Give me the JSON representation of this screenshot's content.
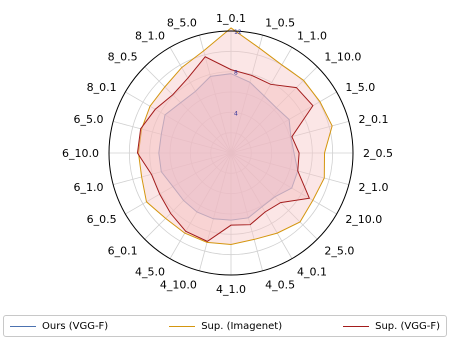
{
  "chart_data": {
    "type": "radar",
    "categories": [
      "1_0.1",
      "1_0.5",
      "1_1.0",
      "1_10.0",
      "1_5.0",
      "2_0.1",
      "2_0.5",
      "2_1.0",
      "2_10.0",
      "2_5.0",
      "4_0.1",
      "4_0.5",
      "4_1.0",
      "4_10.0",
      "4_5.0",
      "6_0.1",
      "6_0.5",
      "6_1.0",
      "6_10.0",
      "6_5.0",
      "8_0.1",
      "8_0.5",
      "8_1.0",
      "8_5.0"
    ],
    "radial_ticks": [
      "4",
      "8",
      "12"
    ],
    "rmax": 12,
    "grid": true,
    "legend_position": "bottom",
    "series": [
      {
        "name": "Ours (VGG-F)",
        "color": "#4c72b0",
        "fill": "#c3a3d6",
        "values": [
          7.8,
          7.2,
          6.5,
          6.3,
          6.6,
          6.1,
          6.2,
          6.8,
          6.9,
          6.1,
          6.1,
          6.6,
          6.6,
          6.7,
          6.7,
          6.6,
          6.6,
          7.1,
          7.1,
          7.1,
          7.5,
          7.0,
          7.0,
          7.8
        ]
      },
      {
        "name": "Sup. (Imagenet)",
        "color": "#d4960f",
        "fill": "#f7c8c8",
        "values": [
          12.3,
          10.7,
          10.0,
          10.1,
          10.1,
          10.3,
          9.2,
          9.5,
          9.3,
          9.6,
          9.1,
          8.8,
          9.0,
          9.1,
          9.1,
          9.1,
          9.6,
          9.1,
          9.1,
          9.1,
          9.2,
          9.2,
          9.7,
          10.4
        ]
      },
      {
        "name": "Sup. (VGG-F)",
        "color": "#a31c1c",
        "fill": "#f3bcbc",
        "values": [
          8.2,
          7.9,
          7.8,
          9.1,
          9.3,
          6.2,
          6.7,
          6.8,
          8.9,
          6.9,
          6.7,
          7.3,
          7.1,
          9.0,
          8.9,
          8.4,
          8.1,
          8.1,
          9.2,
          9.2,
          8.6,
          8.1,
          8.5,
          9.8
        ]
      }
    ]
  }
}
